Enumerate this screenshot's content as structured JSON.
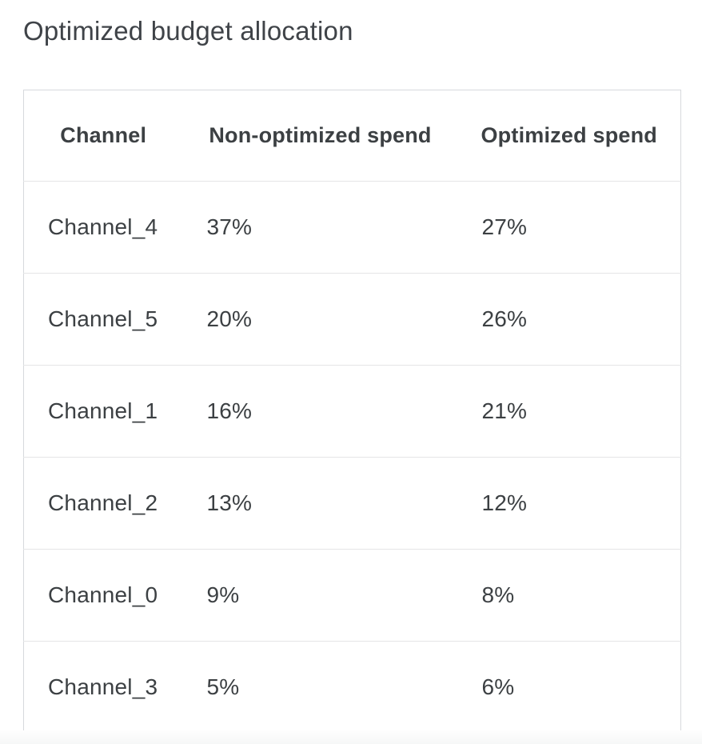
{
  "page_title": "Optimized budget allocation",
  "table": {
    "headers": [
      {
        "id": "channel",
        "label": "Channel"
      },
      {
        "id": "non_optimized",
        "label": "Non-optimized spend"
      },
      {
        "id": "optimized",
        "label": "Optimized spend"
      }
    ],
    "rows": [
      {
        "channel": "Channel_4",
        "non_optimized": "37%",
        "optimized": "27%"
      },
      {
        "channel": "Channel_5",
        "non_optimized": "20%",
        "optimized": "26%"
      },
      {
        "channel": "Channel_1",
        "non_optimized": "16%",
        "optimized": "21%"
      },
      {
        "channel": "Channel_2",
        "non_optimized": "13%",
        "optimized": "12%"
      },
      {
        "channel": "Channel_0",
        "non_optimized": "9%",
        "optimized": "8%"
      },
      {
        "channel": "Channel_3",
        "non_optimized": "5%",
        "optimized": "6%"
      }
    ]
  },
  "chart_data": {
    "type": "table",
    "title": "Optimized budget allocation",
    "columns": [
      "Channel",
      "Non-optimized spend",
      "Optimized spend"
    ],
    "rows": [
      [
        "Channel_4",
        "37%",
        "27%"
      ],
      [
        "Channel_5",
        "20%",
        "26%"
      ],
      [
        "Channel_1",
        "16%",
        "21%"
      ],
      [
        "Channel_2",
        "13%",
        "12%"
      ],
      [
        "Channel_0",
        "9%",
        "8%"
      ],
      [
        "Channel_3",
        "5%",
        "6%"
      ]
    ],
    "series": [
      {
        "name": "Non-optimized spend",
        "values_pct": [
          37,
          20,
          16,
          13,
          9,
          5
        ]
      },
      {
        "name": "Optimized spend",
        "values_pct": [
          27,
          26,
          21,
          12,
          8,
          6
        ]
      }
    ],
    "categories": [
      "Channel_4",
      "Channel_5",
      "Channel_1",
      "Channel_2",
      "Channel_0",
      "Channel_3"
    ]
  },
  "colors": {
    "title_text": "#3f4348",
    "table_text": "#3c4043",
    "header_text": "#3c4043",
    "outer_border": "#d7d9dd",
    "bottom_border": "#d2d4d8",
    "row_divider": "#e4e5e7",
    "background": "#ffffff"
  }
}
